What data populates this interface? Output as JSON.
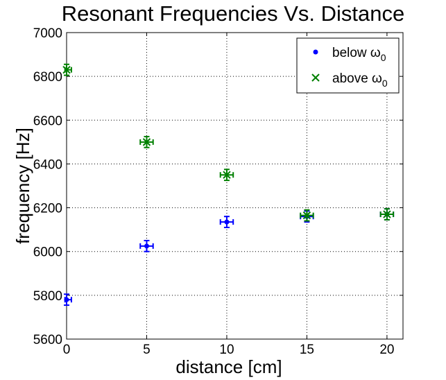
{
  "chart_data": {
    "type": "scatter",
    "title": "Resonant Frequencies Vs. Distance",
    "xlabel": "distance [cm]",
    "ylabel": "frequency [Hz]",
    "xlim": [
      0,
      21
    ],
    "ylim": [
      5600,
      7000
    ],
    "xticks": [
      0,
      5,
      10,
      15,
      20
    ],
    "yticks": [
      5600,
      5800,
      6000,
      6200,
      6400,
      6600,
      6800,
      7000
    ],
    "grid": true,
    "legend_position": "top-right",
    "series": [
      {
        "name": "below ω",
        "name_subscript": "0",
        "marker": "dot",
        "color": "#0000ff",
        "x": [
          0,
          5,
          10,
          15,
          20
        ],
        "y": [
          5780,
          6025,
          6135,
          6160,
          6170
        ],
        "x_err": [
          0.3,
          0.4,
          0.4,
          0.4,
          0.4
        ],
        "y_err": [
          25,
          25,
          25,
          25,
          25
        ]
      },
      {
        "name": "above ω",
        "name_subscript": "0",
        "marker": "x",
        "color": "#008000",
        "x": [
          0,
          5,
          10,
          15,
          20
        ],
        "y": [
          6830,
          6500,
          6350,
          6165,
          6170
        ],
        "x_err": [
          0.3,
          0.4,
          0.4,
          0.4,
          0.4
        ],
        "y_err": [
          25,
          25,
          25,
          25,
          25
        ]
      }
    ]
  }
}
